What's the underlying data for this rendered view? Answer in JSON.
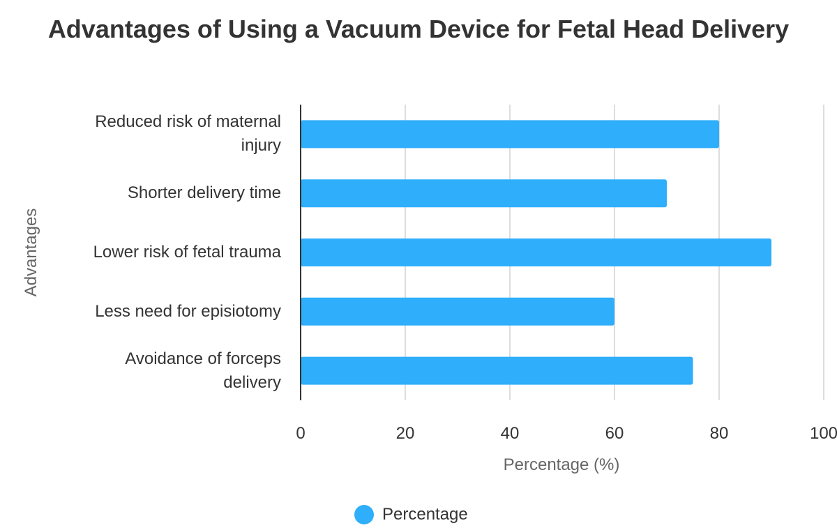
{
  "chart_data": {
    "type": "bar",
    "orientation": "horizontal",
    "title": "Advantages of Using a Vacuum Device for Fetal Head Delivery",
    "xlabel": "Percentage (%)",
    "ylabel": "Advantages",
    "categories": [
      "Reduced risk of maternal injury",
      "Shorter delivery time",
      "Lower risk of fetal trauma",
      "Less need for episiotomy",
      "Avoidance of forceps delivery"
    ],
    "series": [
      {
        "name": "Percentage",
        "color": "#2eaefb",
        "values": [
          80,
          70,
          90,
          60,
          75
        ]
      }
    ],
    "xlim": [
      0,
      100
    ],
    "xticks": [
      "0",
      "20",
      "40",
      "60",
      "80",
      "100"
    ],
    "grid": "vertical",
    "legend": "bottom"
  }
}
